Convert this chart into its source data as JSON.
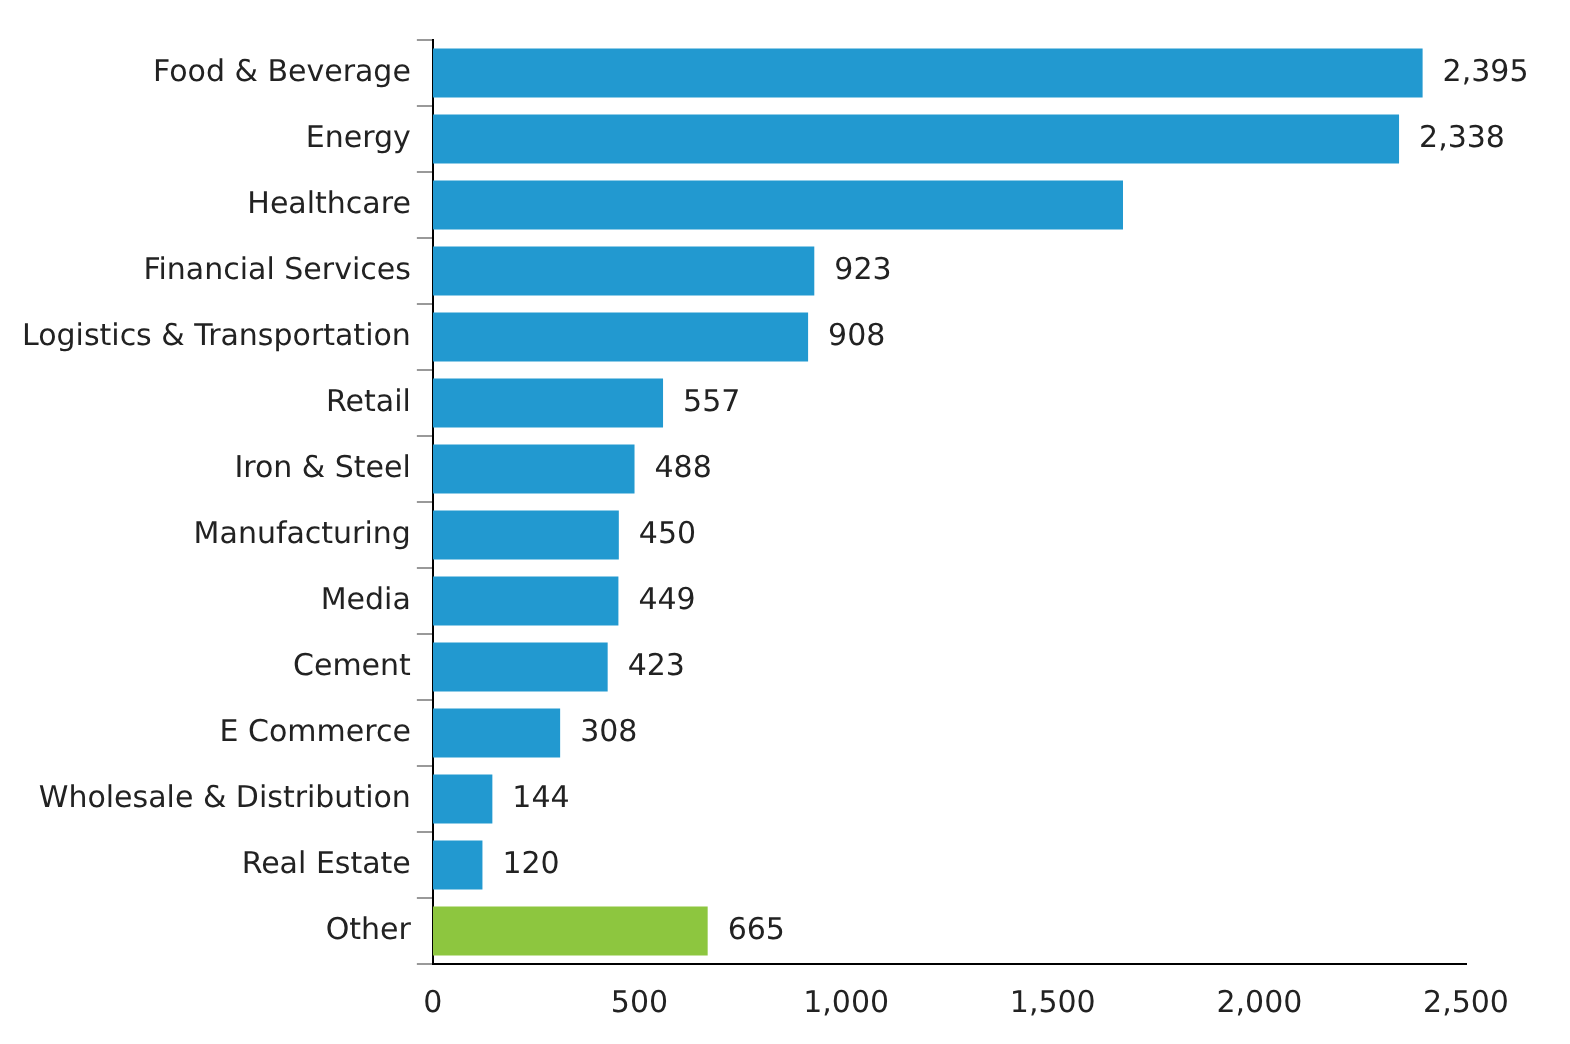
{
  "chart_data": {
    "type": "bar",
    "orientation": "horizontal",
    "categories": [
      "Food & Beverage",
      "Energy",
      "Healthcare",
      "Financial Services",
      "Logistics & Transportation",
      "Retail",
      "Iron & Steel",
      "Manufacturing",
      "Media",
      "Cement",
      "E Commerce",
      "Wholesale & Distribution",
      "Real Estate",
      "Other"
    ],
    "values": [
      2395,
      2338,
      1670,
      923,
      908,
      557,
      488,
      450,
      449,
      423,
      308,
      144,
      120,
      665
    ],
    "colors": [
      "#2299d0",
      "#2299d0",
      "#2299d0",
      "#2299d0",
      "#2299d0",
      "#2299d0",
      "#2299d0",
      "#2299d0",
      "#2299d0",
      "#2299d0",
      "#2299d0",
      "#2299d0",
      "#2299d0",
      "#8dc63f"
    ],
    "value_labels": [
      "2,395",
      "2,338",
      null,
      "923",
      "908",
      "557",
      "488",
      "450",
      "449",
      "423",
      "308",
      "144",
      "120",
      "665"
    ],
    "xlim": [
      0,
      2500
    ],
    "xticks": [
      0,
      {
        "value": 500,
        "label": "500"
      },
      {
        "value": 1000,
        "label": "1,000"
      },
      {
        "value": 1500,
        "label": "1,500"
      },
      {
        "value": 2000,
        "label": "2,000"
      },
      {
        "value": 2500,
        "label": "2,500"
      }
    ],
    "grid": false,
    "legend": false
  }
}
